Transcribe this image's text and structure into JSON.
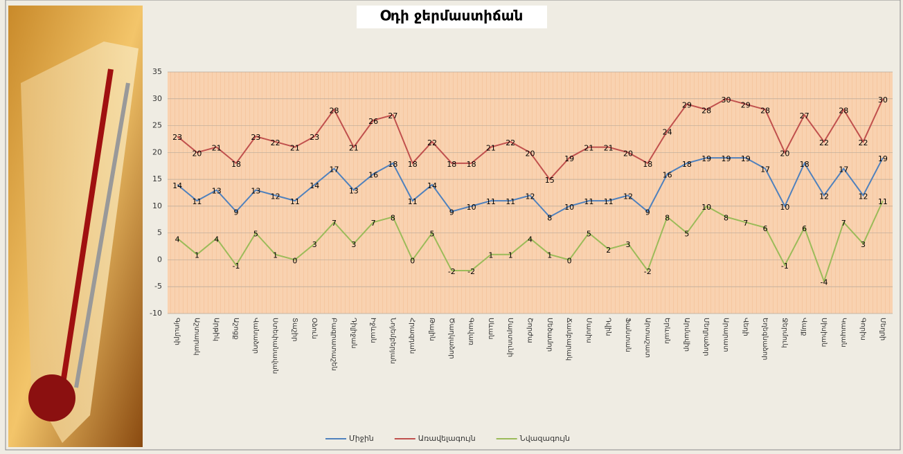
{
  "chart_data": {
    "type": "line",
    "title": "Օդի ջերմաստիճան",
    "categories": [
      "Գյումրի",
      "Աշտարակ",
      "Արթիկ",
      "Աշոցք",
      "Վանաձոր",
      "Ստեփանավան",
      "Տաշիր",
      "Օձուն",
      "Բագրատաշեն",
      "Դիլիջան",
      "Իջևան",
      "Նոյեմբերյան",
      "Հրազդան",
      "Թալին",
      "Ծաղկաձոր",
      "Գավառ",
      "Սևան",
      "Մարտունի",
      "Շորժա",
      "Մեծամոր",
      "Ճամբարակ",
      "Մասիս",
      "Դվին",
      "Ֆանտան",
      "Արտաշատ",
      "Երևան",
      "Արմավիր",
      "Մեղրաձոր",
      "Արարատ",
      "Վեդի",
      "Եղեգնաձոր",
      "Ջերմուկ",
      "Վայք",
      "Սիսիան",
      "Կապան",
      "Գորիս",
      "Մեղրի"
    ],
    "series": [
      {
        "name": "Միջին",
        "color": "#4f81bd",
        "values": [
          14,
          11,
          13,
          9,
          13,
          12,
          11,
          14,
          17,
          13,
          16,
          18,
          11,
          14,
          9,
          10,
          11,
          11,
          12,
          8,
          10,
          11,
          11,
          12,
          9,
          16,
          18,
          19,
          19,
          19,
          17,
          10,
          18,
          12,
          17,
          12,
          19
        ]
      },
      {
        "name": "Առավելագույն",
        "color": "#c0504d",
        "values": [
          23,
          20,
          21,
          18,
          23,
          22,
          21,
          23,
          28,
          21,
          26,
          27,
          18,
          22,
          18,
          18,
          21,
          22,
          20,
          15,
          19,
          21,
          21,
          20,
          18,
          24,
          29,
          28,
          30,
          29,
          28,
          20,
          27,
          22,
          28,
          22,
          30
        ]
      },
      {
        "name": "Նվազագույն",
        "color": "#9bbb59",
        "values": [
          4,
          1,
          4,
          -1,
          5,
          1,
          0,
          3,
          7,
          3,
          7,
          8,
          0,
          5,
          -2,
          -2,
          1,
          1,
          4,
          1,
          0,
          5,
          2,
          3,
          -2,
          8,
          5,
          10,
          8,
          7,
          6,
          -1,
          6,
          -4,
          7,
          3,
          11
        ]
      }
    ],
    "ylim": [
      -10,
      35
    ],
    "yticks": [
      -10,
      -5,
      0,
      5,
      10,
      15,
      20,
      25,
      30,
      35
    ],
    "grid": true,
    "legend": "bottom"
  }
}
